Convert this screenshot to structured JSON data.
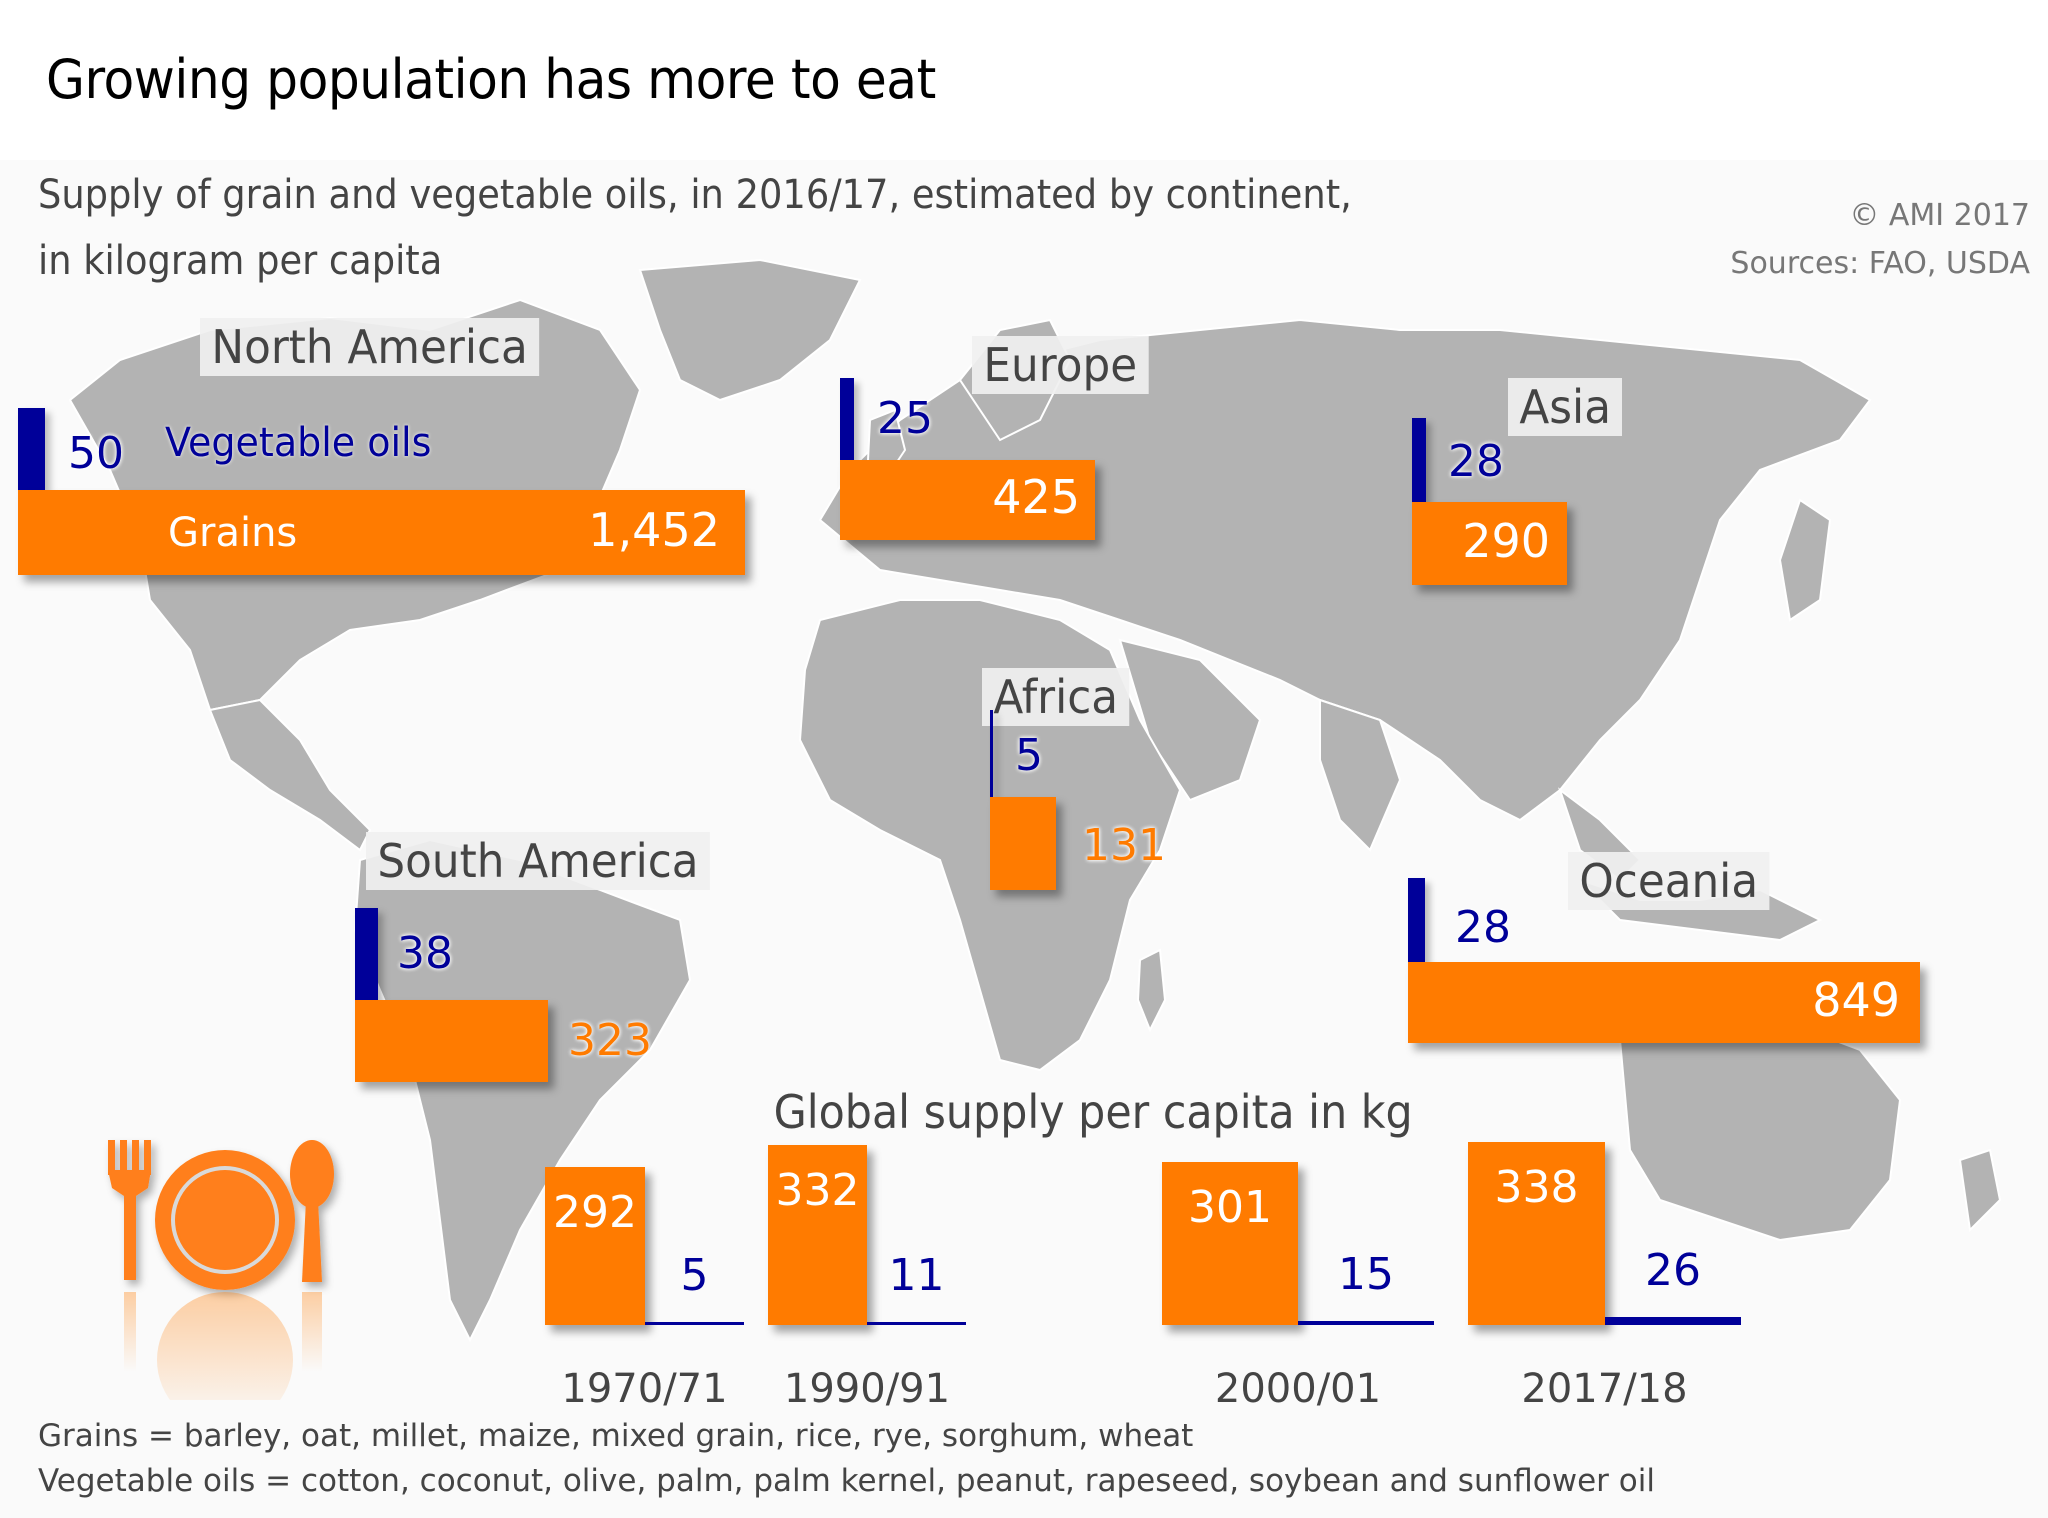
{
  "header": {
    "title": "Growing population has more to eat",
    "subtitle_line1": "Supply of grain and vegetable oils, in 2016/17, estimated by continent,",
    "subtitle_line2": "in kilogram per capita",
    "copyright": "© AMI 2017",
    "sources": "Sources: FAO, USDA"
  },
  "colors": {
    "grains": "#FF7B00",
    "vegetable_oils": "#000099",
    "map": "#B3B3B3",
    "text": "#444444"
  },
  "legend": {
    "vegetable_oils": "Vegetable oils",
    "grains": "Grains"
  },
  "chart_data": [
    {
      "type": "bar",
      "title": "Supply of grain and vegetable oils, in 2016/17, estimated by continent, in kilogram per capita",
      "unit": "kg per capita",
      "categories": [
        "North America",
        "Europe",
        "Asia",
        "Africa",
        "South America",
        "Oceania"
      ],
      "series": [
        {
          "name": "Vegetable oils",
          "values": [
            50,
            25,
            28,
            5,
            38,
            28
          ],
          "labels": [
            "50",
            "25",
            "28",
            "5",
            "38",
            "28"
          ]
        },
        {
          "name": "Grains",
          "values": [
            1452,
            425,
            290,
            131,
            323,
            849
          ],
          "labels": [
            "1,452",
            "425",
            "290",
            "131",
            "323",
            "849"
          ]
        }
      ]
    },
    {
      "type": "bar",
      "title": "Global supply per capita in kg",
      "categories": [
        "1970/71",
        "1990/91",
        "2000/01",
        "2017/18"
      ],
      "series": [
        {
          "name": "Grains",
          "values": [
            292,
            332,
            301,
            338
          ]
        },
        {
          "name": "Vegetable oils",
          "values": [
            5,
            11,
            15,
            26
          ]
        }
      ]
    }
  ],
  "footnotes": {
    "grains": "Grains = barley, oat, millet, maize, mixed grain, rice, rye, sorghum, wheat",
    "oils": "Vegetable oils = cotton, coconut, olive, palm, palm kernel, peanut, rapeseed, soybean and sunflower oil"
  },
  "icon": "plate-with-fork-and-spoon-icon"
}
